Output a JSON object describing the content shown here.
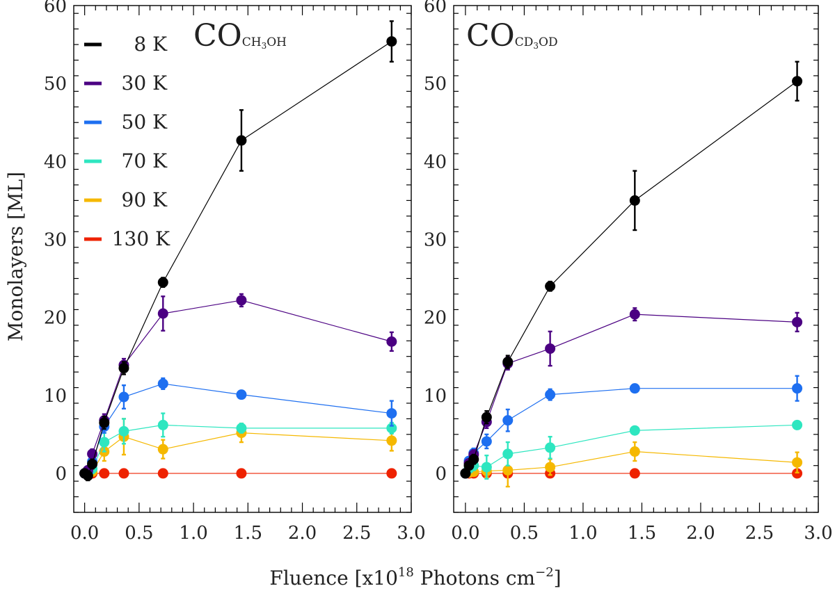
{
  "chart_data": {
    "type": "scatter",
    "ylabel": "Monolayers [ML]",
    "xlabel": {
      "prefix": "Fluence [x10",
      "exp1": "18",
      "mid": " Photons cm",
      "exp2": "−2",
      "suffix": "]"
    },
    "xlim": [
      -0.1,
      3.0
    ],
    "ylim": [
      -5,
      60
    ],
    "xticks": [
      "0.0",
      "0.5",
      "1.0",
      "1.5",
      "2.0",
      "2.5",
      "3.0"
    ],
    "yticks": [
      "0",
      "10",
      "20",
      "30",
      "40",
      "50",
      "60"
    ],
    "legend": [
      {
        "label": "8 K",
        "color": "#000000"
      },
      {
        "label": "30 K",
        "color": "#4b0082"
      },
      {
        "label": "50 K",
        "color": "#1e6ff0"
      },
      {
        "label": "70 K",
        "color": "#2ee6c0"
      },
      {
        "label": "90 K",
        "color": "#f5b800"
      },
      {
        "label": "130 K",
        "color": "#ee2200"
      }
    ],
    "panels": [
      {
        "title_main": "CO",
        "title_sub": "CH",
        "title_sub2": "3",
        "title_sub3": "OH",
        "series": [
          {
            "name": "8 K",
            "x": [
              0,
              0.03,
              0.07,
              0.18,
              0.36,
              0.72,
              1.44,
              2.82
            ],
            "y": [
              0,
              -0.3,
              1.2,
              6.5,
              13.5,
              24.5,
              42.7,
              55.4
            ],
            "err": [
              0.4,
              0.6,
              0.6,
              0.8,
              0.8,
              0.6,
              3.9,
              2.6
            ]
          },
          {
            "name": "30 K",
            "x": [
              0,
              0.03,
              0.07,
              0.18,
              0.36,
              0.72,
              1.44,
              2.82
            ],
            "y": [
              0,
              0.4,
              2.5,
              6.8,
              13.9,
              20.5,
              22.2,
              16.9
            ],
            "err": [
              0.3,
              0.5,
              0.6,
              0.8,
              0.8,
              2.2,
              0.8,
              1.2
            ]
          },
          {
            "name": "50 K",
            "x": [
              0,
              0.03,
              0.07,
              0.18,
              0.36,
              0.72,
              1.44,
              2.82
            ],
            "y": [
              0,
              0.2,
              1.5,
              6.0,
              9.8,
              11.5,
              10.1,
              7.7
            ],
            "err": [
              0.3,
              0.5,
              0.6,
              0.8,
              1.5,
              0.7,
              0.4,
              1.6
            ]
          },
          {
            "name": "70 K",
            "x": [
              0,
              0.03,
              0.07,
              0.18,
              0.36,
              0.72,
              1.44,
              2.82
            ],
            "y": [
              0,
              0.1,
              0.6,
              4.0,
              5.4,
              6.2,
              5.8,
              5.8
            ],
            "err": [
              0.3,
              0.5,
              0.6,
              1.2,
              1.6,
              1.5,
              0.6,
              0.7
            ]
          },
          {
            "name": "90 K",
            "x": [
              0,
              0.03,
              0.07,
              0.18,
              0.36,
              0.72,
              1.44,
              2.82
            ],
            "y": [
              0,
              0.0,
              0.2,
              2.8,
              4.7,
              3.1,
              5.2,
              4.2
            ],
            "err": [
              0.3,
              0.4,
              0.5,
              1.2,
              2.3,
              1.2,
              1.2,
              1.3
            ]
          },
          {
            "name": "130 K",
            "x": [
              0,
              0.03,
              0.07,
              0.18,
              0.36,
              0.72,
              1.44,
              2.82
            ],
            "y": [
              0,
              0,
              0,
              0,
              0,
              0,
              0,
              0
            ],
            "err": [
              0,
              0,
              0,
              0,
              0,
              0,
              0,
              0
            ]
          }
        ]
      },
      {
        "title_main": "CO",
        "title_sub": "CD",
        "title_sub2": "3",
        "title_sub3": "OD",
        "series": [
          {
            "name": "8 K",
            "x": [
              0,
              0.03,
              0.07,
              0.18,
              0.36,
              0.72,
              1.44,
              2.82
            ],
            "y": [
              0,
              1.0,
              1.8,
              7.2,
              14.3,
              24.0,
              35.0,
              50.3
            ],
            "err": [
              0.3,
              0.5,
              0.6,
              0.8,
              0.8,
              0.6,
              3.8,
              2.5
            ]
          },
          {
            "name": "30 K",
            "x": [
              0,
              0.03,
              0.07,
              0.18,
              0.36,
              0.72,
              1.44,
              2.82
            ],
            "y": [
              0,
              1.3,
              2.4,
              6.6,
              14.1,
              16.0,
              20.4,
              19.4
            ],
            "err": [
              0.3,
              0.5,
              0.6,
              0.8,
              0.8,
              2.2,
              0.8,
              1.2
            ]
          },
          {
            "name": "50 K",
            "x": [
              0,
              0.03,
              0.07,
              0.18,
              0.36,
              0.72,
              1.44,
              2.82
            ],
            "y": [
              0,
              1.6,
              2.6,
              4.1,
              6.8,
              10.1,
              10.9,
              10.9
            ],
            "err": [
              0.3,
              0.5,
              0.6,
              0.9,
              1.4,
              0.7,
              0.4,
              1.6
            ]
          },
          {
            "name": "70 K",
            "x": [
              0,
              0.03,
              0.07,
              0.18,
              0.36,
              0.72,
              1.44,
              2.82
            ],
            "y": [
              0,
              0.6,
              1.0,
              0.8,
              2.5,
              3.3,
              5.5,
              6.2
            ],
            "err": [
              0.3,
              0.5,
              0.6,
              1.5,
              1.5,
              1.4,
              0.4,
              0.5
            ]
          },
          {
            "name": "90 K",
            "x": [
              0,
              0.03,
              0.07,
              0.18,
              0.36,
              0.72,
              1.44,
              2.82
            ],
            "y": [
              0,
              0.1,
              0.2,
              0.3,
              0.4,
              0.8,
              2.8,
              1.4
            ],
            "err": [
              0.3,
              0.4,
              0.5,
              0.8,
              2.1,
              1.0,
              1.2,
              1.3
            ]
          },
          {
            "name": "130 K",
            "x": [
              0,
              0.03,
              0.07,
              0.18,
              0.36,
              0.72,
              1.44,
              2.82
            ],
            "y": [
              0,
              0,
              0,
              0,
              0,
              0,
              0,
              0
            ],
            "err": [
              0,
              0,
              0,
              0,
              0,
              0,
              0,
              0
            ]
          }
        ]
      }
    ]
  }
}
